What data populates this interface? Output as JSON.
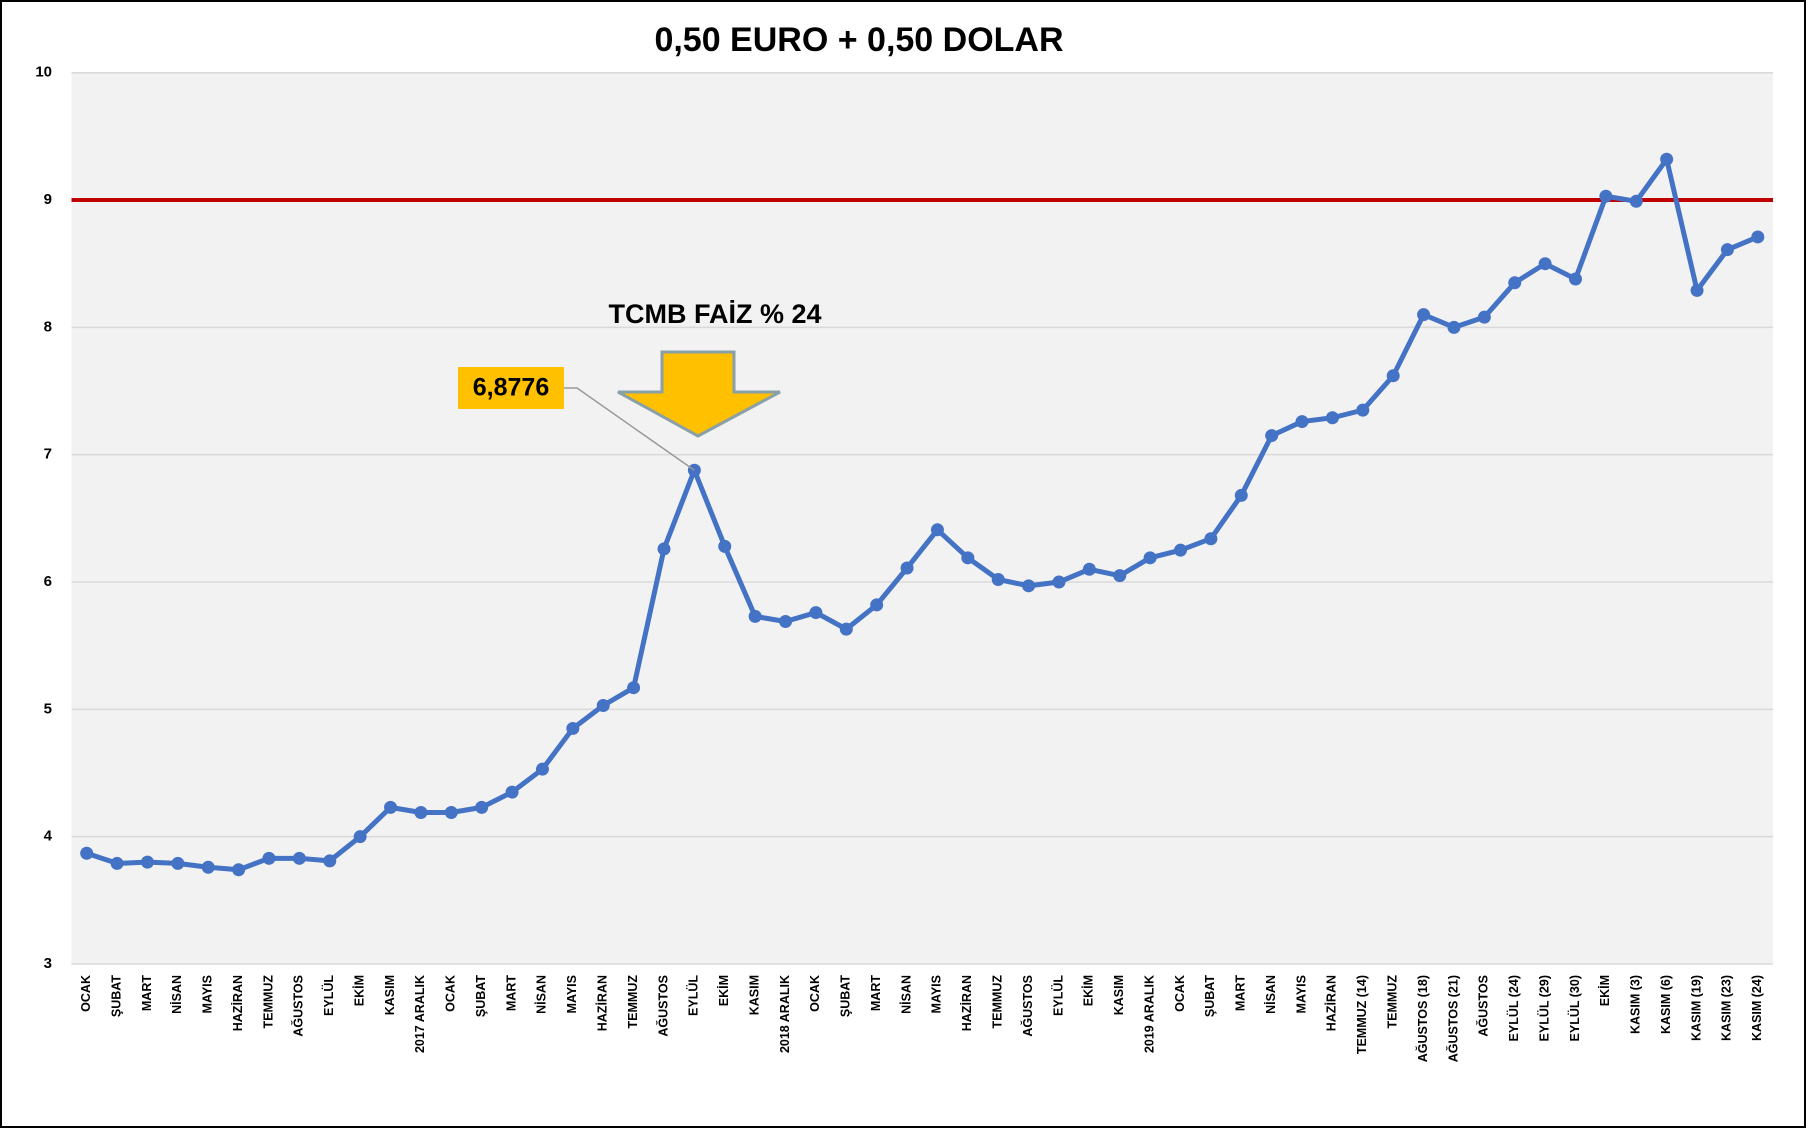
{
  "chart_data": {
    "type": "line",
    "title": "0,50 EURO + 0,50 DOLAR",
    "categories": [
      "OCAK",
      "ŞUBAT",
      "MART",
      "NİSAN",
      "MAYIS",
      "HAZİRAN",
      "TEMMUZ",
      "AĞUSTOS",
      "EYLÜL",
      "EKİM",
      "KASIM",
      "2017 ARALIK",
      "OCAK",
      "ŞUBAT",
      "MART",
      "NİSAN",
      "MAYIS",
      "HAZİRAN",
      "TEMMUZ",
      "AĞUSTOS",
      "EYLÜL",
      "EKİM",
      "KASIM",
      "2018 ARALIK",
      "OCAK",
      "ŞUBAT",
      "MART",
      "NİSAN",
      "MAYIS",
      "HAZİRAN",
      "TEMMUZ",
      "AĞUSTOS",
      "EYLÜL",
      "EKİM",
      "KASIM",
      "2019 ARALIK",
      "OCAK",
      "ŞUBAT",
      "MART",
      "NİSAN",
      "MAYIS",
      "HAZİRAN",
      "TEMMUZ (14)",
      "TEMMUZ",
      "AĞUSTOS (18)",
      "AĞUSTOS (21)",
      "AĞUSTOS",
      "EYLÜL (24)",
      "EYLÜL (29)",
      "EYLÜL (30)",
      "EKİM",
      "KASIM (3)",
      "KASIM (6)",
      "KASIM (19)",
      "KASIM (23)",
      "KASIM (24)"
    ],
    "series": [
      {
        "name": "0,50 EURO + 0,50 DOLAR",
        "color": "#4472c4",
        "values": [
          3.87,
          3.79,
          3.8,
          3.79,
          3.76,
          3.74,
          3.83,
          3.83,
          3.81,
          4.0,
          4.23,
          4.19,
          4.19,
          4.23,
          4.35,
          4.53,
          4.85,
          5.03,
          5.17,
          6.26,
          6.8776,
          6.28,
          5.73,
          5.69,
          5.76,
          5.63,
          5.82,
          6.11,
          6.41,
          6.19,
          6.02,
          5.97,
          6.0,
          6.1,
          6.05,
          6.19,
          6.25,
          6.34,
          6.68,
          7.15,
          7.26,
          7.29,
          7.35,
          7.62,
          8.1,
          8.0,
          8.08,
          8.35,
          8.5,
          8.38,
          9.03,
          8.99,
          9.32,
          8.29,
          8.61,
          8.71
        ],
        "value_labels": [
          null,
          null,
          null,
          null,
          null,
          null,
          null,
          null,
          null,
          null,
          null,
          null,
          null,
          null,
          null,
          null,
          null,
          null,
          null,
          null,
          "6,8776",
          null,
          null,
          null,
          null,
          null,
          null,
          null,
          null,
          null,
          null,
          null,
          null,
          null,
          null,
          null,
          null,
          null,
          null,
          null,
          null,
          null,
          null,
          null,
          null,
          null,
          null,
          null,
          null,
          null,
          null,
          null,
          null,
          null,
          null,
          null
        ]
      }
    ],
    "reference_line": {
      "value": 9,
      "color": "#c00000"
    },
    "annotation": "TCMB FAİZ % 24",
    "ylim": [
      3,
      10
    ],
    "yticks": [
      3,
      4,
      5,
      6,
      7,
      8,
      9,
      10
    ],
    "grid": true
  }
}
